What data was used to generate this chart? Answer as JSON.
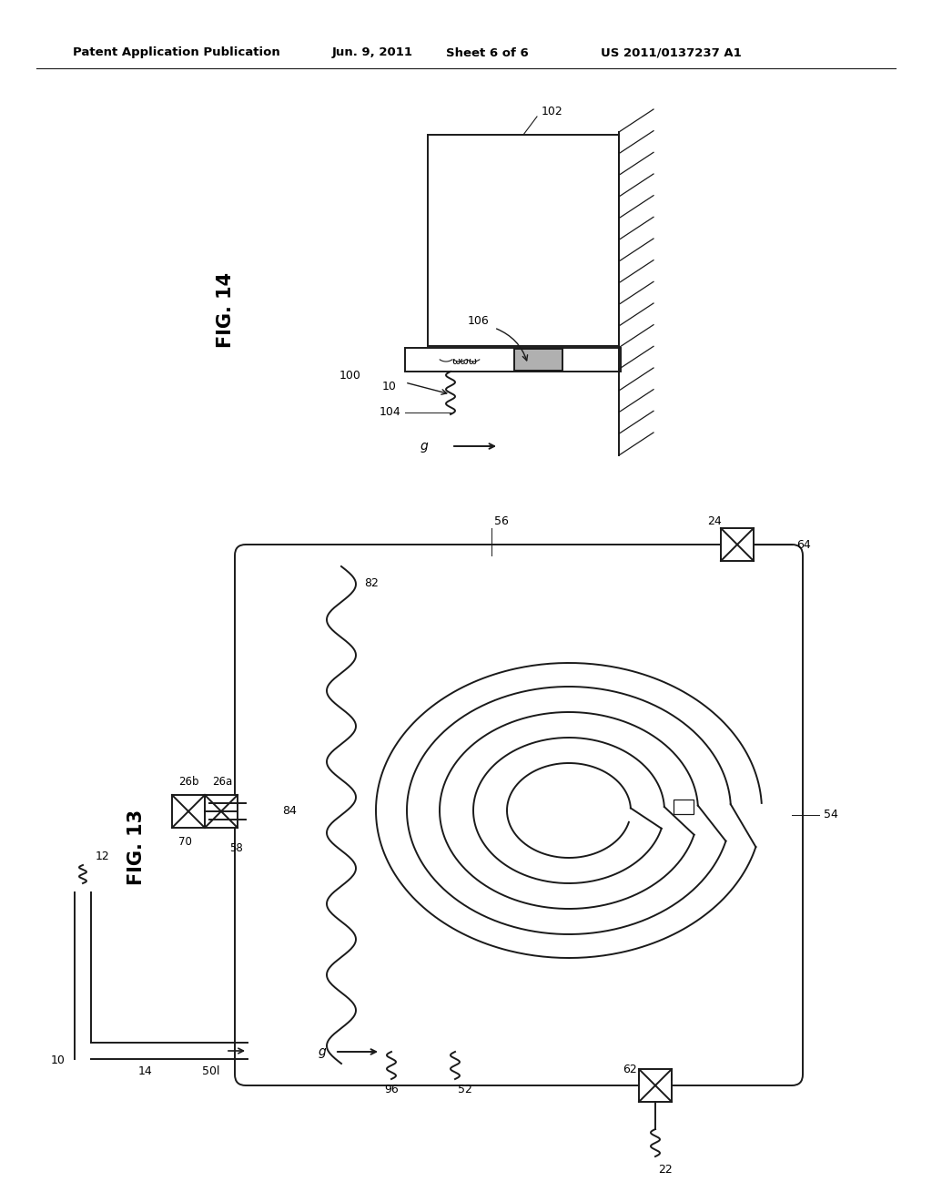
{
  "bg_color": "#ffffff",
  "line_color": "#1a1a1a",
  "header_text": "Patent Application Publication",
  "header_date": "Jun. 9, 2011",
  "header_sheet": "Sheet 6 of 6",
  "header_patent": "US 2011/0137237 A1",
  "fig14_label": "FIG. 14",
  "fig13_label": "FIG. 13"
}
